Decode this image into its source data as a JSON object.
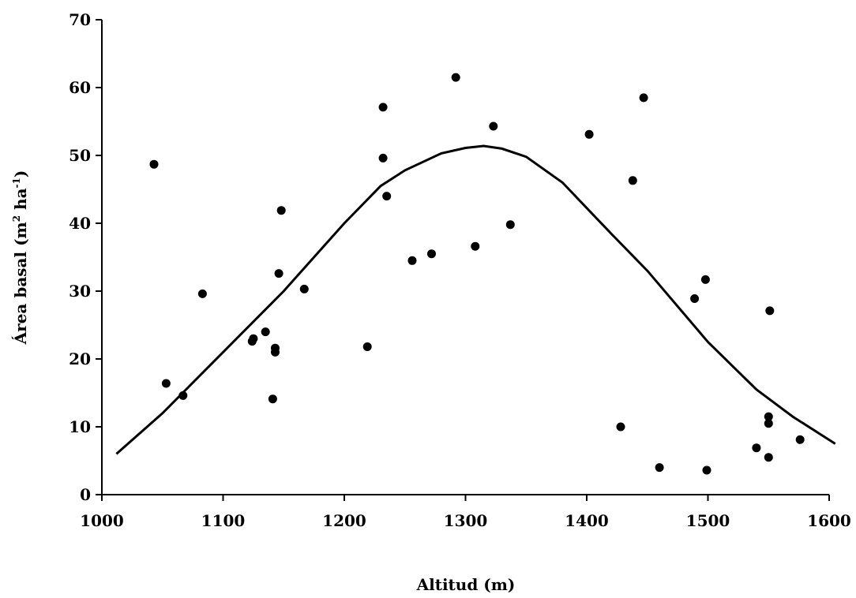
{
  "chart_data": {
    "type": "scatter",
    "xlabel": "Altitud (m)",
    "ylabel_main": "Área basal (m",
    "ylabel_sup1": "2",
    "ylabel_mid": " ha",
    "ylabel_sup2": "-1",
    "ylabel_end": ")",
    "xlim": [
      1000,
      1600
    ],
    "ylim": [
      0,
      70
    ],
    "xticks": [
      1000,
      1100,
      1200,
      1300,
      1400,
      1500,
      1600
    ],
    "yticks": [
      0,
      10,
      20,
      30,
      40,
      50,
      60,
      70
    ],
    "grid": false,
    "legend": "none",
    "colors": {
      "points": "#000000",
      "curve": "#000000"
    },
    "points": [
      {
        "x": 1043,
        "y": 48.7
      },
      {
        "x": 1053,
        "y": 16.4
      },
      {
        "x": 1067,
        "y": 14.6
      },
      {
        "x": 1083,
        "y": 29.6
      },
      {
        "x": 1124,
        "y": 22.6
      },
      {
        "x": 1125,
        "y": 23.0
      },
      {
        "x": 1135,
        "y": 24.0
      },
      {
        "x": 1141,
        "y": 14.1
      },
      {
        "x": 1143,
        "y": 21.0
      },
      {
        "x": 1143,
        "y": 21.6
      },
      {
        "x": 1146,
        "y": 32.6
      },
      {
        "x": 1148,
        "y": 41.9
      },
      {
        "x": 1167,
        "y": 30.3
      },
      {
        "x": 1219,
        "y": 21.8
      },
      {
        "x": 1232,
        "y": 57.1
      },
      {
        "x": 1232,
        "y": 49.6
      },
      {
        "x": 1235,
        "y": 44.0
      },
      {
        "x": 1256,
        "y": 34.5
      },
      {
        "x": 1272,
        "y": 35.5
      },
      {
        "x": 1292,
        "y": 61.5
      },
      {
        "x": 1308,
        "y": 36.6
      },
      {
        "x": 1323,
        "y": 54.3
      },
      {
        "x": 1337,
        "y": 39.8
      },
      {
        "x": 1402,
        "y": 53.1
      },
      {
        "x": 1428,
        "y": 10.0
      },
      {
        "x": 1438,
        "y": 46.3
      },
      {
        "x": 1447,
        "y": 58.5
      },
      {
        "x": 1460,
        "y": 4.0
      },
      {
        "x": 1489,
        "y": 28.9
      },
      {
        "x": 1498,
        "y": 31.7
      },
      {
        "x": 1499,
        "y": 3.6
      },
      {
        "x": 1540,
        "y": 6.9
      },
      {
        "x": 1550,
        "y": 5.5
      },
      {
        "x": 1550,
        "y": 10.5
      },
      {
        "x": 1550,
        "y": 11.5
      },
      {
        "x": 1551,
        "y": 27.1
      },
      {
        "x": 1576,
        "y": 8.1
      }
    ],
    "curve": {
      "x": [
        1012,
        1050,
        1100,
        1150,
        1200,
        1230,
        1250,
        1280,
        1300,
        1315,
        1330,
        1350,
        1380,
        1420,
        1450,
        1500,
        1540,
        1570,
        1605
      ],
      "y": [
        6.0,
        12.0,
        21.0,
        30.0,
        40.0,
        45.5,
        47.8,
        50.3,
        51.1,
        51.4,
        51.0,
        49.8,
        46.0,
        38.5,
        33.0,
        22.5,
        15.5,
        11.5,
        7.5
      ]
    }
  }
}
